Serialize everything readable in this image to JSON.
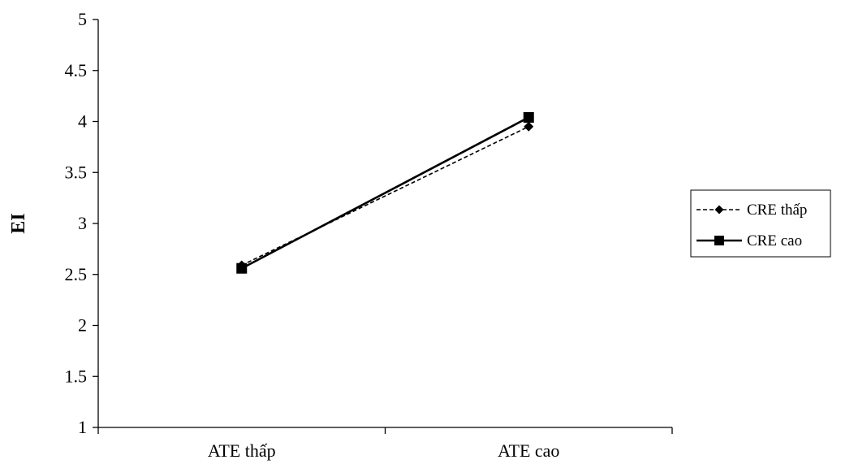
{
  "chart_data": {
    "type": "line",
    "title": "",
    "xlabel": "",
    "ylabel": "EI",
    "categories": [
      "ATE thấp",
      "ATE cao"
    ],
    "ylim": [
      1,
      5
    ],
    "yticks": [
      "1",
      "1.5",
      "2",
      "2.5",
      "3",
      "3.5",
      "4",
      "4.5",
      "5"
    ],
    "grid": false,
    "legend_position": "right",
    "series": [
      {
        "name": "CRE thấp",
        "values": [
          2.59,
          3.95
        ],
        "line_style": "dashed",
        "marker": "diamond",
        "color": "#000000"
      },
      {
        "name": "CRE cao",
        "values": [
          2.56,
          4.04
        ],
        "line_style": "solid",
        "marker": "square",
        "color": "#000000"
      }
    ]
  }
}
